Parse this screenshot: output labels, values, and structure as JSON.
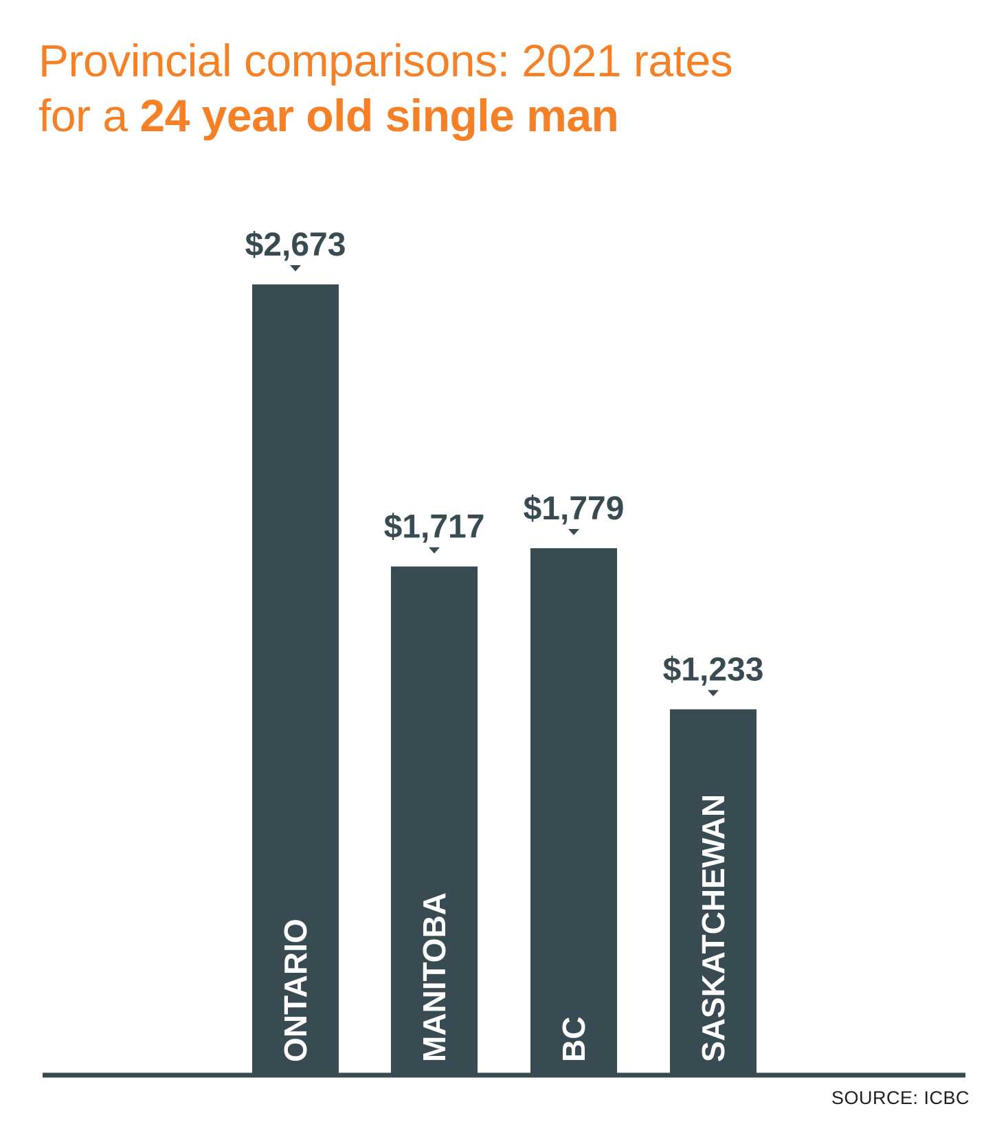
{
  "title": {
    "line1": "Provincial comparisons: 2021 rates",
    "line2_regular": "for a ",
    "line2_bold": "24 year old single man"
  },
  "source": "SOURCE: ICBC",
  "colors": {
    "title": "#f58025",
    "bar": "#394b52",
    "label_on_bar": "#ffffff",
    "value_label": "#394b52"
  },
  "chart_data": {
    "type": "bar",
    "categories": [
      "ONTARIO",
      "MANITOBA",
      "BC",
      "SASKATCHEWAN"
    ],
    "values": [
      2673,
      1717,
      1779,
      1233
    ],
    "value_labels": [
      "$2,673",
      "$1,717",
      "$1,779",
      "$1,233"
    ],
    "title": "Provincial comparisons: 2021 rates for a 24 year old single man",
    "xlabel": "",
    "ylabel": "",
    "ylim": [
      0,
      2673
    ],
    "grid": false,
    "legend": "none"
  }
}
